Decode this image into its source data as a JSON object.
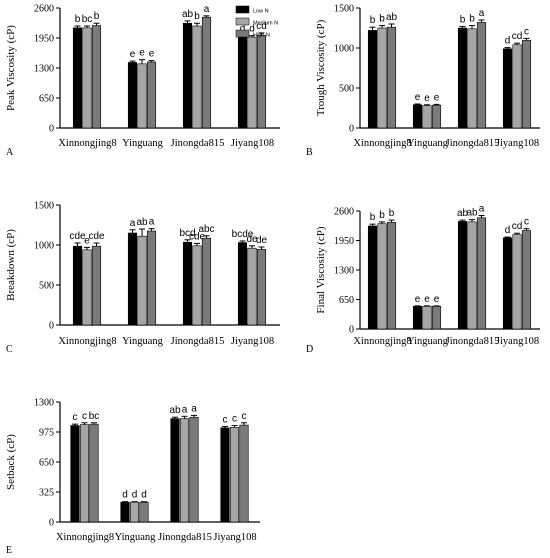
{
  "colors": {
    "low": "#000000",
    "medium": "#a6a6a6",
    "high": "#7a7a7a",
    "axis": "#000000",
    "background": "#ffffff"
  },
  "legend": {
    "items": [
      "Low N",
      "Medium N",
      "High N"
    ],
    "placement": "top-right of panel A"
  },
  "chart_data": [
    {
      "panel": "A",
      "type": "bar",
      "ylabel": "Peak Viscosity (cP)",
      "categories": [
        "Xinnongjing8",
        "Yinguang",
        "Jinongda815",
        "Jiyang108"
      ],
      "ylim": [
        0,
        2600
      ],
      "yticks": [
        0,
        650,
        1300,
        1950,
        2600
      ],
      "series": [
        {
          "name": "Low N",
          "values": [
            2170,
            1420,
            2270,
            1970
          ],
          "errors": [
            40,
            30,
            50,
            30
          ]
        },
        {
          "name": "Medium N",
          "values": [
            2170,
            1390,
            2210,
            1970
          ],
          "errors": [
            40,
            90,
            60,
            30
          ]
        },
        {
          "name": "High N",
          "values": [
            2220,
            1430,
            2400,
            2010
          ],
          "errors": [
            50,
            30,
            30,
            50
          ]
        }
      ],
      "annotations": [
        [
          "b",
          "bc",
          "b"
        ],
        [
          "e",
          "e",
          "e"
        ],
        [
          "ab",
          "b",
          "a"
        ],
        [
          "d",
          "d",
          "cd"
        ]
      ]
    },
    {
      "panel": "B",
      "type": "bar",
      "ylabel": "Trough Viscosity (cP)",
      "categories": [
        "Xinnongjing8",
        "Yinguang",
        "Jinongda815",
        "Jiyang108"
      ],
      "ylim": [
        0,
        1500
      ],
      "yticks": [
        0,
        500,
        1000,
        1500
      ],
      "series": [
        {
          "name": "Low N",
          "values": [
            1220,
            290,
            1250,
            990
          ],
          "errors": [
            40,
            10,
            20,
            15
          ]
        },
        {
          "name": "Medium N",
          "values": [
            1250,
            280,
            1240,
            1040
          ],
          "errors": [
            30,
            10,
            40,
            20
          ]
        },
        {
          "name": "High N",
          "values": [
            1260,
            285,
            1320,
            1095
          ],
          "errors": [
            40,
            10,
            30,
            25
          ]
        }
      ],
      "annotations": [
        [
          "b",
          "b",
          "ab"
        ],
        [
          "e",
          "e",
          "e"
        ],
        [
          "b",
          "b",
          "a"
        ],
        [
          "d",
          "cd",
          "c"
        ]
      ]
    },
    {
      "panel": "C",
      "type": "bar",
      "ylabel": "Breakdown (cP)",
      "categories": [
        "Xinnongjing8",
        "Yinguang",
        "Jinongda815",
        "Jiyang108"
      ],
      "ylim": [
        0,
        1500
      ],
      "yticks": [
        0,
        500,
        1000,
        1500
      ],
      "series": [
        {
          "name": "Low N",
          "values": [
            985,
            1150,
            1035,
            1030
          ],
          "errors": [
            40,
            40,
            30,
            20
          ]
        },
        {
          "name": "Medium N",
          "values": [
            940,
            1110,
            990,
            960
          ],
          "errors": [
            30,
            90,
            30,
            30
          ]
        },
        {
          "name": "High N",
          "values": [
            985,
            1175,
            1085,
            945
          ],
          "errors": [
            40,
            30,
            30,
            30
          ]
        }
      ],
      "annotations": [
        [
          "cde",
          "e",
          "cde"
        ],
        [
          "a",
          "ab",
          "a"
        ],
        [
          "bcd",
          "cde",
          "abc"
        ],
        [
          "bcde",
          "de",
          "de"
        ]
      ]
    },
    {
      "panel": "D",
      "type": "bar",
      "ylabel": "Final Viscosity (cP)",
      "categories": [
        "Xinnongjing8",
        "Yinguang",
        "Jinongda815",
        "Jiyang108"
      ],
      "ylim": [
        0,
        2600
      ],
      "yticks": [
        0,
        650,
        1300,
        1950,
        2600
      ],
      "series": [
        {
          "name": "Low N",
          "values": [
            2270,
            500,
            2370,
            2010
          ],
          "errors": [
            40,
            10,
            30,
            15
          ]
        },
        {
          "name": "Medium N",
          "values": [
            2320,
            500,
            2360,
            2080
          ],
          "errors": [
            40,
            10,
            50,
            30
          ]
        },
        {
          "name": "High N",
          "values": [
            2350,
            500,
            2450,
            2170
          ],
          "errors": [
            50,
            10,
            50,
            40
          ]
        }
      ],
      "annotations": [
        [
          "b",
          "b",
          "b"
        ],
        [
          "e",
          "e",
          "e"
        ],
        [
          "ab",
          "ab",
          "a"
        ],
        [
          "d",
          "cd",
          "c"
        ]
      ]
    },
    {
      "panel": "E",
      "type": "bar",
      "ylabel": "Setback (cP)",
      "categories": [
        "Xinnongjing8",
        "Yinguang",
        "Jinongda815",
        "Jiyang108"
      ],
      "ylim": [
        0,
        1300
      ],
      "yticks": [
        0,
        325,
        650,
        975,
        1300
      ],
      "series": [
        {
          "name": "Low N",
          "values": [
            1045,
            215,
            1120,
            1020
          ],
          "errors": [
            15,
            5,
            15,
            15
          ]
        },
        {
          "name": "Medium N",
          "values": [
            1055,
            215,
            1120,
            1025
          ],
          "errors": [
            20,
            5,
            25,
            20
          ]
        },
        {
          "name": "High N",
          "values": [
            1060,
            215,
            1135,
            1050
          ],
          "errors": [
            15,
            5,
            20,
            25
          ]
        }
      ],
      "annotations": [
        [
          "c",
          "c",
          "bc"
        ],
        [
          "d",
          "d",
          "d"
        ],
        [
          "ab",
          "a",
          "a"
        ],
        [
          "c",
          "c",
          "c"
        ]
      ]
    }
  ]
}
